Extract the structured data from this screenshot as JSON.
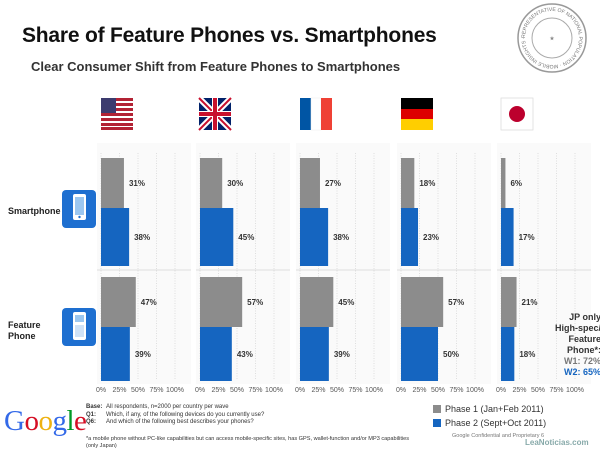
{
  "title": "Share of Feature Phones vs. Smartphones",
  "subtitle": "Clear Consumer Shift from Feature Phones to Smartphones",
  "seal_text": "REPRESENTATIVE OF NATIONAL POPULATION · MOBILE INSIGHTS · APPROVED",
  "row_labels": {
    "smartphone": "Smartphone",
    "feature": "Feature Phone"
  },
  "jp_note": {
    "line1": "JP only",
    "line2": "High-spec/ Feature Phone*:",
    "w1": "W1: 72%",
    "w2": "W2: 65%"
  },
  "google_logo": "Google",
  "base_notes": [
    {
      "key": "Base:",
      "text": "All respondents, n=2000 per country per wave"
    },
    {
      "key": "Q1:",
      "text": "Which, if any, of the following devices do you currently use?"
    },
    {
      "key": "Q6:",
      "text": "And which of the following best describes your phones?"
    }
  ],
  "footnote": "*a mobile phone without PC-like capabilities but can access mobile-specific sites, has GPS, wallet-function and/or MP3 capabilities (only Japan)",
  "legend": {
    "phase1": "Phase 1 (Jan+Feb 2011)",
    "phase2": "Phase 2 (Sept+Oct 2011)"
  },
  "confidential": "Google Confidential and Proprietary",
  "page_number": "6",
  "watermark": "LeaNoticias.com",
  "colors": {
    "phase1": "#8c8c8c",
    "phase2": "#1565c0",
    "grid": "#cccccc"
  },
  "chart_data": {
    "type": "bar",
    "orientation": "horizontal",
    "title": "Share of Feature Phones vs. Smartphones",
    "subtitle": "Clear Consumer Shift from Feature Phones to Smartphones",
    "xlim": [
      0,
      100
    ],
    "tick_labels": [
      "0%",
      "25%",
      "50%",
      "75%",
      "100%"
    ],
    "panels": [
      "US",
      "UK",
      "France",
      "Germany",
      "Japan"
    ],
    "rows": [
      "Smartphone",
      "Feature Phone"
    ],
    "series": [
      {
        "name": "Phase 1 (Jan+Feb 2011)",
        "smartphone": [
          31,
          30,
          27,
          18,
          6
        ],
        "feature_phone": [
          47,
          57,
          45,
          57,
          21
        ]
      },
      {
        "name": "Phase 2 (Sept+Oct 2011)",
        "smartphone": [
          38,
          45,
          38,
          23,
          17
        ],
        "feature_phone": [
          39,
          43,
          39,
          50,
          18
        ]
      }
    ],
    "value_labels": {
      "smartphone_p1": [
        "31%",
        "30%",
        "27%",
        "18%",
        "6%"
      ],
      "smartphone_p2": [
        "38%",
        "45%",
        "38%",
        "23%",
        "17%"
      ],
      "feature_p1": [
        "47%",
        "57%",
        "45%",
        "57%",
        "21%"
      ],
      "feature_p2": [
        "39%",
        "43%",
        "39%",
        "50%",
        "18%"
      ]
    }
  }
}
